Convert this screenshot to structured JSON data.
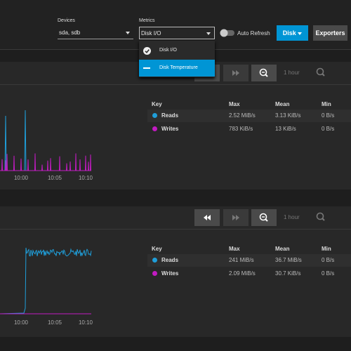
{
  "toolbar": {
    "devices_label": "Devices",
    "devices_value": "sda, sdb",
    "metrics_label": "Metrics",
    "metrics_value": "Disk I/O",
    "auto_refresh": "Auto Refresh",
    "disk_button": "Disk",
    "exporters_button": "Exporters"
  },
  "metrics_menu": [
    "Disk I/O",
    "Disk Temperature"
  ],
  "panels": [
    {
      "time_range": "1 hour",
      "x_ticks": [
        "10:00",
        "10:05",
        "10:10"
      ],
      "legend": {
        "headers": [
          "Key",
          "Max",
          "Mean",
          "Min"
        ],
        "rows": [
          [
            "Reads",
            "2.52 MiB/s",
            "3.13 KiB/s",
            "0 B/s"
          ],
          [
            "Writes",
            "783 KiB/s",
            "13 KiB/s",
            "0 B/s"
          ]
        ]
      }
    },
    {
      "time_range": "1 hour",
      "x_ticks": [
        "10:00",
        "10:05",
        "10:10"
      ],
      "legend": {
        "headers": [
          "Key",
          "Max",
          "Mean",
          "Min"
        ],
        "rows": [
          [
            "Reads",
            "241 MiB/s",
            "36.7 MiB/s",
            "0 B/s"
          ],
          [
            "Writes",
            "2.09 MiB/s",
            "30.7 KiB/s",
            "0 B/s"
          ]
        ]
      }
    }
  ]
}
